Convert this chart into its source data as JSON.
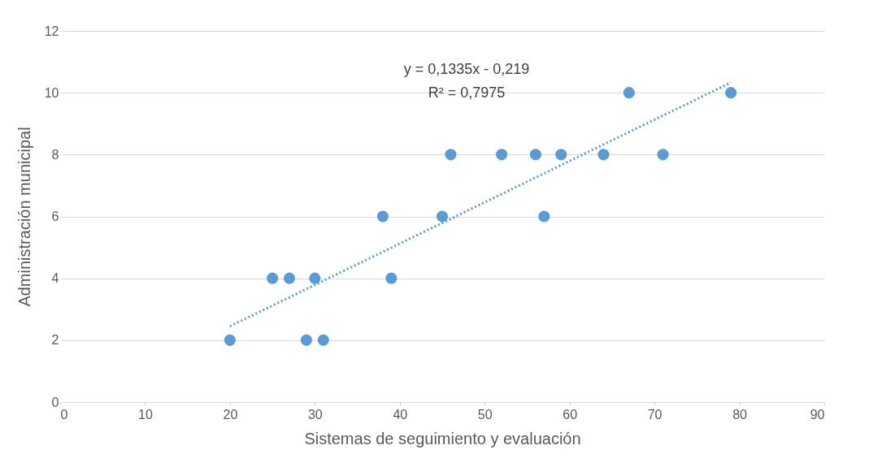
{
  "chart_data": {
    "type": "scatter",
    "xlabel": "Sistemas de seguimiento y evaluación",
    "ylabel": "Administración municipal",
    "xlim": [
      0,
      90
    ],
    "xticks": [
      0,
      10,
      20,
      30,
      40,
      50,
      60,
      70,
      80,
      90
    ],
    "ylim": [
      0,
      12
    ],
    "yticks": [
      0,
      2,
      4,
      6,
      8,
      10,
      12
    ],
    "grid": "y",
    "series": [
      {
        "marker": "circle",
        "color": "#5b9bd5",
        "x": [
          20,
          25,
          27,
          29,
          30,
          31,
          38,
          39,
          45,
          46,
          52,
          56,
          57,
          59,
          64,
          67,
          71,
          79
        ],
        "values": [
          2,
          4,
          4,
          2,
          4,
          2,
          6,
          4,
          6,
          8,
          8,
          8,
          6,
          8,
          8,
          10,
          8,
          10
        ]
      },
      {
        "type": "line",
        "color": "#5b9bd5",
        "line_style": "dotted",
        "marker": "none",
        "x": [
          20,
          79
        ],
        "values": [
          2.45,
          10.33
        ]
      }
    ],
    "annotations": [
      "y = 0,1335x - 0,219",
      "R² = 0,7975"
    ]
  }
}
